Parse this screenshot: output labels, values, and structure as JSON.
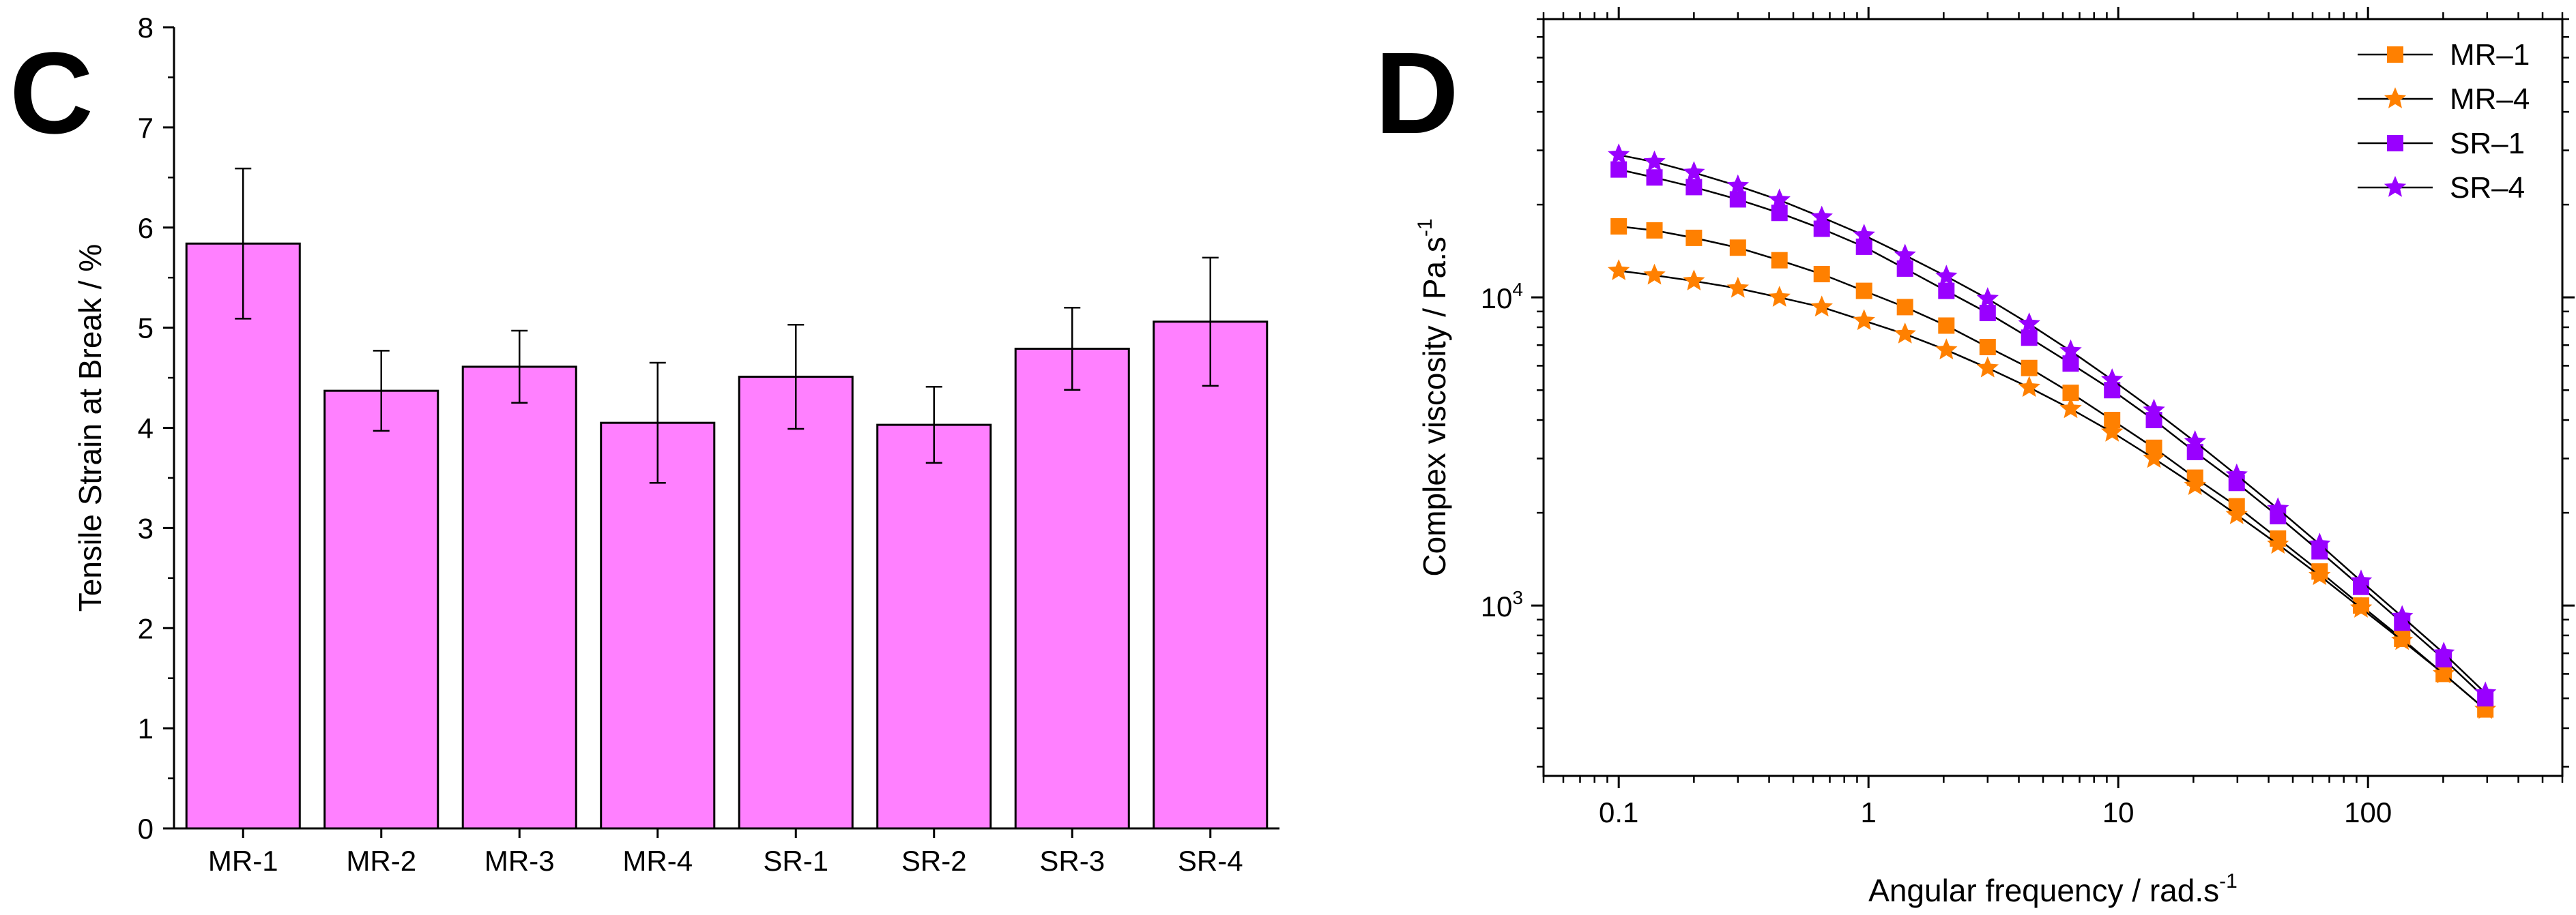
{
  "panels": [
    {
      "letter": "C"
    },
    {
      "letter": "D"
    }
  ],
  "chart_data": [
    {
      "type": "bar",
      "panel": "C",
      "title": "",
      "xlabel": "",
      "ylabel": "Tensile Strain at Break / %",
      "categories": [
        "MR-1",
        "MR-2",
        "MR-3",
        "MR-4",
        "SR-1",
        "SR-2",
        "SR-3",
        "SR-4"
      ],
      "values": [
        5.84,
        4.37,
        4.61,
        4.05,
        4.51,
        4.03,
        4.79,
        5.06
      ],
      "errors": [
        0.75,
        0.4,
        0.36,
        0.6,
        0.52,
        0.38,
        0.41,
        0.64
      ],
      "ylim": [
        0,
        8
      ],
      "yticks": [
        0,
        1,
        2,
        3,
        4,
        5,
        6,
        7,
        8
      ],
      "bar_color": "#ff80ff",
      "grid": false
    },
    {
      "type": "line",
      "panel": "D",
      "title": "",
      "xscale": "log",
      "yscale": "log",
      "xlabel": "Angular frequency / rad.s",
      "xlabel_sup": "-1",
      "ylabel": "Complex viscosity / Pa.s",
      "ylabel_sup": "-1",
      "xlim": [
        0.05,
        600
      ],
      "ylim": [
        280,
        80000
      ],
      "xticks": [
        0.1,
        1,
        10,
        100
      ],
      "xtick_labels": [
        "0.1",
        "1",
        "10",
        "100"
      ],
      "yticks": [
        1000,
        10000
      ],
      "ytick_labels": [
        {
          "base": "10",
          "exp": "3"
        },
        {
          "base": "10",
          "exp": "4"
        }
      ],
      "legend_position": "top-right",
      "grid": false,
      "x": [
        0.1,
        0.139,
        0.2,
        0.3,
        0.44,
        0.65,
        0.96,
        1.4,
        2.05,
        3.0,
        4.4,
        6.45,
        9.45,
        13.9,
        20.3,
        29.8,
        43.6,
        64,
        93.8,
        137,
        201,
        295
      ],
      "series": [
        {
          "name": "MR–1",
          "marker": "square",
          "color": "#ff8000",
          "values": [
            17000,
            16500,
            15600,
            14500,
            13200,
            11900,
            10500,
            9300,
            8100,
            6900,
            5900,
            4900,
            4000,
            3250,
            2600,
            2100,
            1650,
            1290,
            1000,
            780,
            600,
            460
          ]
        },
        {
          "name": "MR–4",
          "marker": "star",
          "color": "#ff8000",
          "values": [
            12200,
            11800,
            11300,
            10700,
            10000,
            9300,
            8400,
            7600,
            6750,
            5900,
            5100,
            4350,
            3650,
            3000,
            2450,
            1970,
            1580,
            1250,
            980,
            770,
            600,
            460
          ]
        },
        {
          "name": "SR–1",
          "marker": "square",
          "color": "#9900ff",
          "values": [
            26000,
            24500,
            22800,
            20800,
            18800,
            16700,
            14600,
            12400,
            10500,
            8900,
            7400,
            6100,
            5000,
            4000,
            3150,
            2500,
            1950,
            1500,
            1150,
            880,
            670,
            500
          ]
        },
        {
          "name": "SR–4",
          "marker": "star",
          "color": "#9900ff",
          "values": [
            29000,
            27500,
            25400,
            23000,
            20700,
            18200,
            15900,
            13700,
            11700,
            9900,
            8200,
            6700,
            5400,
            4300,
            3400,
            2650,
            2060,
            1580,
            1200,
            920,
            700,
            520
          ]
        }
      ]
    }
  ]
}
